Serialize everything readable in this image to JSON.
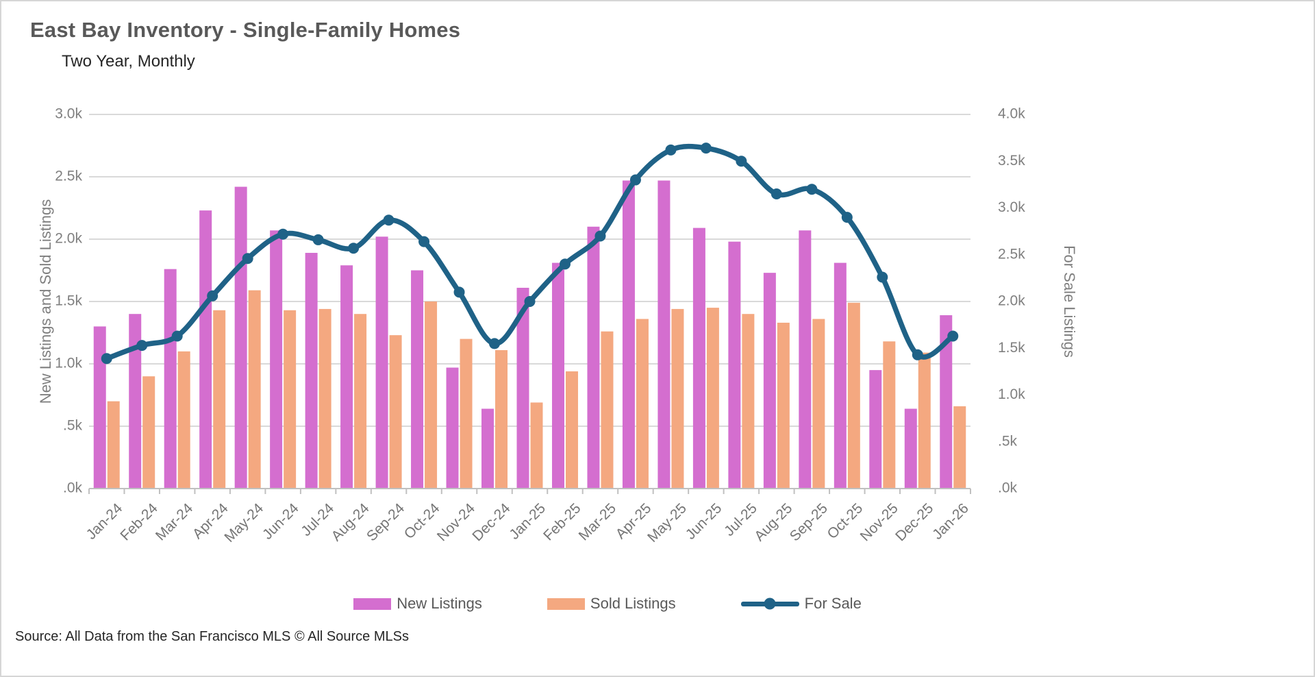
{
  "page": {
    "title": "East Bay Inventory - Single-Family Homes",
    "subtitle": "Two Year, Monthly",
    "source": "Source: All Data from the San Francisco MLS © All Source MLSs"
  },
  "legend": {
    "items": [
      {
        "label": "New Listings",
        "color": "#D46ECF",
        "swatch": "bar"
      },
      {
        "label": "Sold Listings",
        "color": "#F4A880",
        "swatch": "bar"
      },
      {
        "label": "For Sale",
        "color": "#1F6287",
        "swatch": "line"
      }
    ]
  },
  "chart_data": {
    "type": "bar",
    "title": "East Bay Inventory - Single-Family Homes",
    "subtitle": "Two Year, Monthly",
    "categories": [
      "Jan-24",
      "Feb-24",
      "Mar-24",
      "Apr-24",
      "May-24",
      "Jun-24",
      "Jul-24",
      "Aug-24",
      "Sep-24",
      "Oct-24",
      "Nov-24",
      "Dec-24",
      "Jan-25",
      "Feb-25",
      "Mar-25",
      "Apr-25",
      "May-25",
      "Jun-25",
      "Jul-25",
      "Aug-25",
      "Sep-25",
      "Oct-25",
      "Nov-25",
      "Dec-25",
      "Jan-26"
    ],
    "series": [
      {
        "name": "New Listings",
        "type": "bar",
        "axis": "left",
        "color": "#D46ECF",
        "values": [
          1.3,
          1.4,
          1.76,
          2.23,
          2.42,
          2.07,
          1.89,
          1.79,
          2.02,
          1.75,
          0.97,
          0.64,
          1.61,
          1.81,
          2.1,
          2.47,
          2.47,
          2.09,
          1.98,
          1.73,
          2.07,
          1.81,
          0.95,
          0.64,
          1.39
        ]
      },
      {
        "name": "Sold Listings",
        "type": "bar",
        "axis": "left",
        "color": "#F4A880",
        "values": [
          0.7,
          0.9,
          1.1,
          1.43,
          1.59,
          1.43,
          1.44,
          1.4,
          1.23,
          1.5,
          1.2,
          1.11,
          0.69,
          0.94,
          1.26,
          1.36,
          1.44,
          1.45,
          1.4,
          1.33,
          1.36,
          1.49,
          1.18,
          1.09,
          0.66
        ]
      },
      {
        "name": "For Sale",
        "type": "line",
        "axis": "right",
        "color": "#1F6287",
        "values": [
          1.39,
          1.53,
          1.63,
          2.06,
          2.46,
          2.72,
          2.66,
          2.57,
          2.87,
          2.64,
          2.1,
          1.55,
          2.0,
          2.4,
          2.7,
          3.3,
          3.62,
          3.64,
          3.5,
          3.15,
          3.2,
          2.9,
          2.26,
          1.43,
          1.63
        ]
      }
    ],
    "units": "thousands of listings",
    "left_axis": {
      "label": "New Listings and Sold Listings",
      "min": 0,
      "max": 3.0,
      "step": 0.5,
      "ticks": [
        ".0k",
        ".5k",
        "1.0k",
        "1.5k",
        "2.0k",
        "2.5k",
        "3.0k"
      ]
    },
    "right_axis": {
      "label": "For Sale Listings",
      "min": 0,
      "max": 4.0,
      "step": 0.5,
      "ticks": [
        ".0k",
        ".5k",
        "1.0k",
        "1.5k",
        "2.0k",
        "2.5k",
        "3.0k",
        "3.5k",
        "4.0k"
      ]
    },
    "grid": true,
    "legend_position": "bottom",
    "colors": {
      "gridline": "#D9D9D9",
      "axis_line": "#C0C0C0",
      "tick_text": "#7F7F7F",
      "x_tick_text": "#757575"
    }
  }
}
